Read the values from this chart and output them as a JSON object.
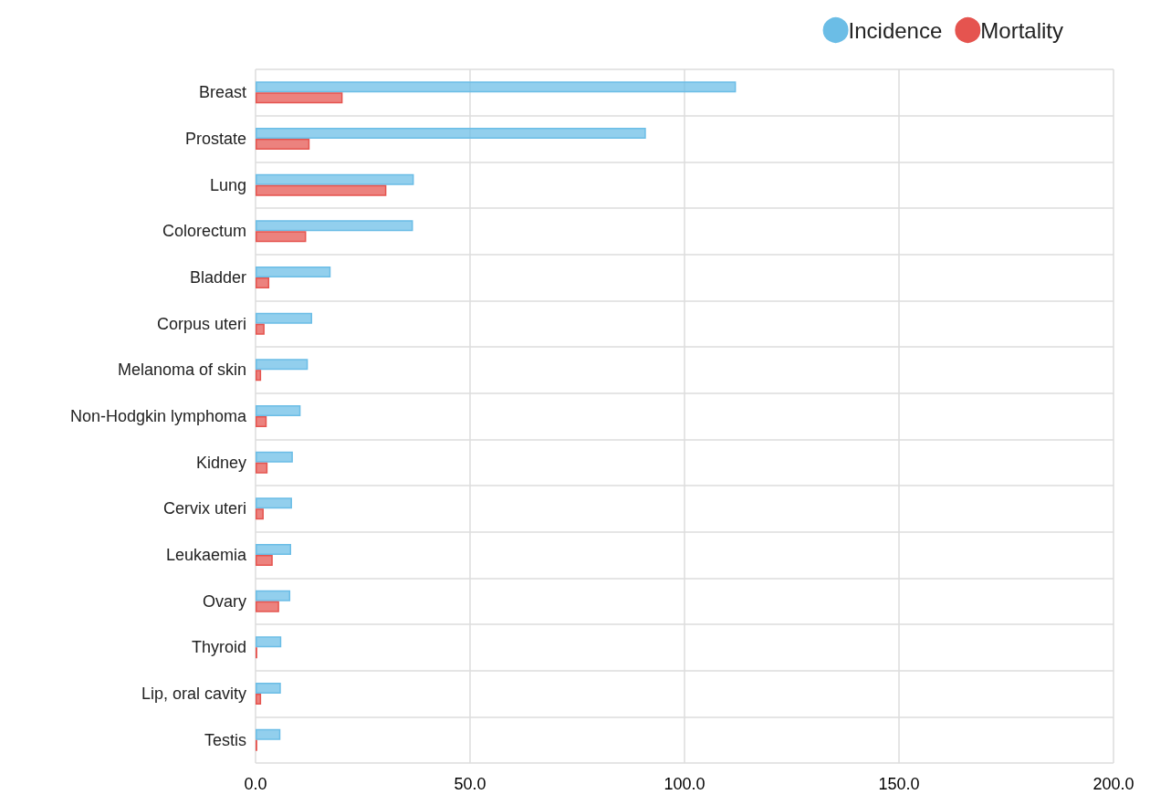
{
  "chart_data": {
    "type": "bar",
    "orientation": "horizontal",
    "categories": [
      "Breast",
      "Prostate",
      "Lung",
      "Colorectum",
      "Bladder",
      "Corpus uteri",
      "Melanoma of skin",
      "Non-Hodgkin lymphoma",
      "Kidney",
      "Cervix uteri",
      "Leukaemia",
      "Ovary",
      "Thyroid",
      "Lip, oral cavity",
      "Testis"
    ],
    "series": [
      {
        "name": "Incidence",
        "color": "#6bbde6",
        "values": [
          112,
          91.0,
          36.9,
          36.7,
          17.5,
          13.2,
          12.2,
          10.5,
          8.7,
          8.5,
          8.3,
          8.1,
          6.0,
          5.9,
          5.8
        ]
      },
      {
        "name": "Mortality",
        "color": "#e5544f",
        "values": [
          20.3,
          12.6,
          30.5,
          11.8,
          3.2,
          2.1,
          1.3,
          2.6,
          2.8,
          1.9,
          4.0,
          5.5,
          0.4,
          1.3,
          0.4
        ]
      }
    ],
    "xlim": [
      0,
      200
    ],
    "xticks": [
      {
        "value": 0,
        "label": "0.0"
      },
      {
        "value": 50,
        "label": "50.0"
      },
      {
        "value": 100,
        "label": "100.0"
      },
      {
        "value": 150,
        "label": "150.0"
      },
      {
        "value": 200,
        "label": "200.0"
      }
    ],
    "grid": true,
    "legend": "top right"
  }
}
